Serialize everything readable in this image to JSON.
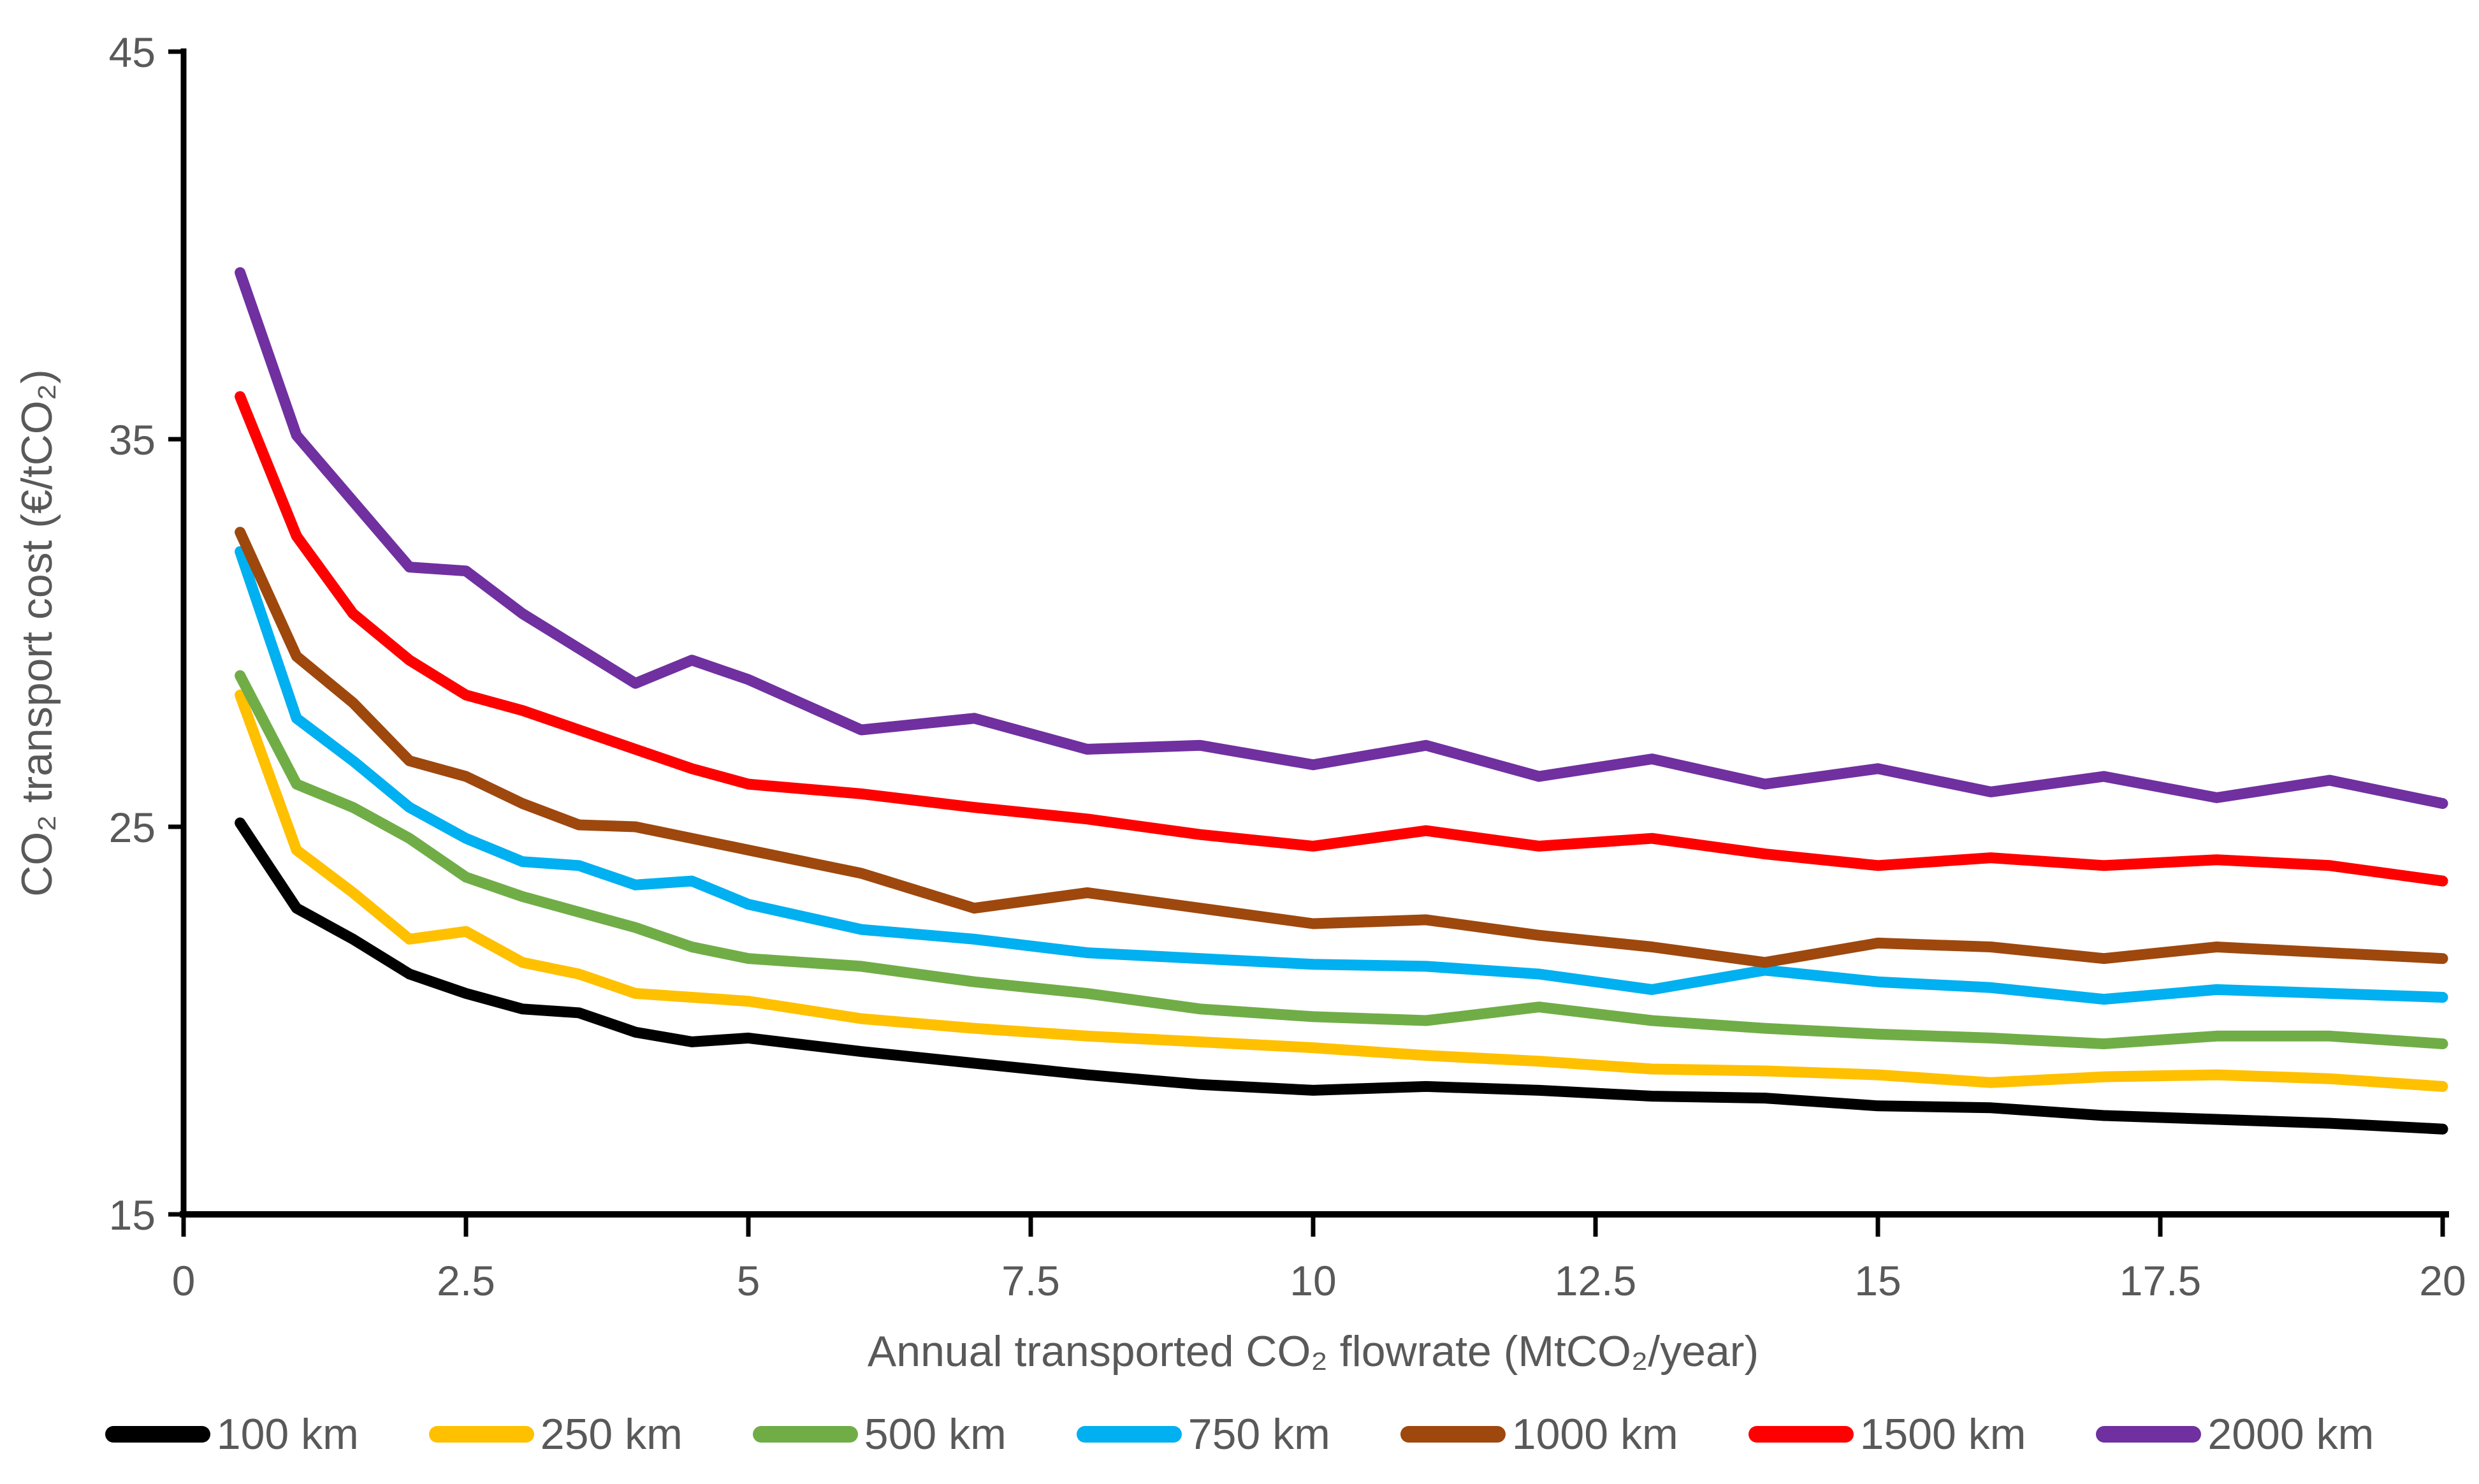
{
  "chart_data": {
    "type": "line",
    "title": "",
    "xlabel": "Annual transported CO₂ flowrate (MtCO₂/year)",
    "ylabel": "CO₂ transport cost (€/tCO₂)",
    "xlim": [
      0,
      20
    ],
    "ylim": [
      15,
      45
    ],
    "grid": false,
    "legend_position": "bottom",
    "text_color": "#595959",
    "axis_color": "#000000",
    "x": [
      0.5,
      1,
      1.5,
      2,
      2.5,
      3,
      3.5,
      4,
      4.5,
      5,
      6,
      7,
      8,
      9,
      10,
      11,
      12,
      13,
      14,
      15,
      16,
      17,
      18,
      19,
      20
    ],
    "x_ticks": [
      {
        "value": 0,
        "label": "0"
      },
      {
        "value": 2.5,
        "label": "2.5"
      },
      {
        "value": 5,
        "label": "5"
      },
      {
        "value": 7.5,
        "label": "7.5"
      },
      {
        "value": 10,
        "label": "10"
      },
      {
        "value": 12.5,
        "label": "12.5"
      },
      {
        "value": 15,
        "label": "15"
      },
      {
        "value": 17.5,
        "label": "17.5"
      },
      {
        "value": 20,
        "label": "20"
      }
    ],
    "y_ticks": [
      {
        "value": 45,
        "label": "45"
      },
      {
        "value": 35,
        "label": "35"
      },
      {
        "value": 25,
        "label": "25"
      },
      {
        "value": 15,
        "label": "15"
      }
    ],
    "series": [
      {
        "name": "100 km",
        "color": "#000000",
        "values": [
          25.1,
          22.9,
          22.1,
          21.2,
          20.7,
          20.3,
          20.2,
          19.7,
          19.45,
          19.55,
          19.2,
          18.9,
          18.6,
          18.35,
          18.2,
          18.3,
          18.2,
          18.05,
          18.0,
          17.8,
          17.75,
          17.55,
          17.45,
          17.35,
          17.2
        ]
      },
      {
        "name": "250 km",
        "color": "#FFC000",
        "values": [
          28.4,
          24.4,
          23.3,
          22.1,
          22.3,
          21.5,
          21.2,
          20.7,
          20.6,
          20.5,
          20.05,
          19.8,
          19.6,
          19.45,
          19.3,
          19.1,
          18.95,
          18.75,
          18.7,
          18.6,
          18.4,
          18.55,
          18.6,
          18.5,
          18.3
        ]
      },
      {
        "name": "500 km",
        "color": "#70AD47",
        "values": [
          28.9,
          26.1,
          25.5,
          24.7,
          23.7,
          23.2,
          22.8,
          22.4,
          21.9,
          21.6,
          21.4,
          21.0,
          20.7,
          20.3,
          20.1,
          20.0,
          20.35,
          20.0,
          19.8,
          19.65,
          19.55,
          19.4,
          19.6,
          19.6,
          19.4
        ]
      },
      {
        "name": "750 km",
        "color": "#00B0F0",
        "values": [
          32.1,
          27.8,
          26.7,
          25.5,
          24.7,
          24.1,
          24.0,
          23.5,
          23.6,
          23.0,
          22.35,
          22.1,
          21.75,
          21.6,
          21.45,
          21.4,
          21.2,
          20.8,
          21.3,
          21.0,
          20.85,
          20.55,
          20.8,
          20.7,
          20.6
        ]
      },
      {
        "name": "1000 km",
        "color": "#9E480E",
        "values": [
          32.6,
          29.4,
          28.2,
          26.7,
          26.3,
          25.6,
          25.05,
          25.0,
          24.7,
          24.4,
          23.8,
          22.9,
          23.3,
          22.9,
          22.5,
          22.6,
          22.2,
          21.9,
          21.5,
          22.0,
          21.9,
          21.6,
          21.9,
          21.75,
          21.6
        ]
      },
      {
        "name": "1500 km",
        "color": "#FF0000",
        "values": [
          36.1,
          32.5,
          30.5,
          29.3,
          28.4,
          28.0,
          27.5,
          27.0,
          26.5,
          26.1,
          25.85,
          25.5,
          25.2,
          24.8,
          24.5,
          24.9,
          24.5,
          24.7,
          24.3,
          24.0,
          24.2,
          24.0,
          24.15,
          24.0,
          23.6
        ]
      },
      {
        "name": "2000 km",
        "color": "#7030A0",
        "values": [
          39.3,
          35.1,
          33.4,
          31.7,
          31.6,
          30.5,
          29.6,
          28.7,
          29.3,
          28.8,
          27.5,
          27.8,
          27.0,
          27.1,
          26.6,
          27.1,
          26.3,
          26.75,
          26.1,
          26.5,
          25.9,
          26.3,
          25.75,
          26.2,
          25.6
        ]
      }
    ]
  }
}
